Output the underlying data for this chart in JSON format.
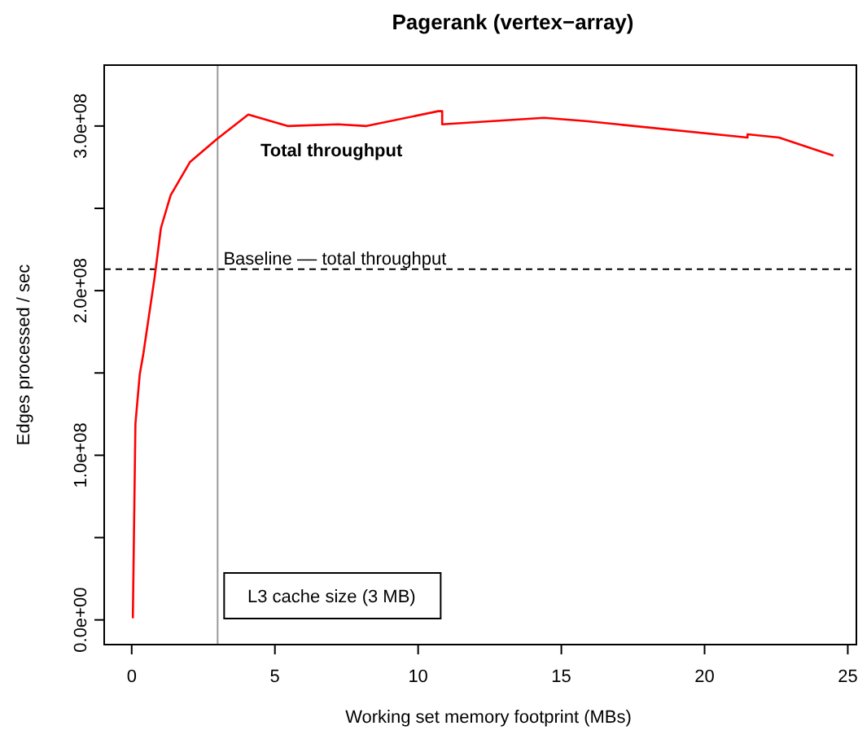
{
  "chart_data": {
    "type": "line",
    "title": "Pagerank (vertex−array)",
    "xlabel": "Working set memory footprint (MBs)",
    "ylabel": "Edges processed / sec",
    "x": [
      0.04,
      0.13,
      0.28,
      0.41,
      0.8,
      1.02,
      1.36,
      2.03,
      2.97,
      4.07,
      5.44,
      7.2,
      8.2,
      10.7,
      10.84,
      10.84,
      14.4,
      15.85,
      21.5,
      21.5,
      22.6,
      24.5
    ],
    "annotations": [
      "Total throughput"
    ],
    "series": [
      {
        "color": "#ff0000",
        "values": [
          1000000,
          119000000,
          149000000,
          162000000,
          208000000,
          238000000,
          258000000,
          278000000,
          292000000,
          307000000,
          300000000,
          301000000,
          300000000,
          309000000,
          309000000,
          301000000,
          305000000,
          303000000,
          293000000,
          295000000,
          293000000,
          282000000
        ]
      }
    ],
    "xlim": [
      -0.96,
      25.3
    ],
    "xticks": [
      0,
      5,
      10,
      15,
      20,
      25
    ],
    "ylim": [
      -15000000,
      337000000
    ],
    "yticks": [
      {
        "value": 0,
        "label": "0.0e+00"
      },
      {
        "value": 50000000,
        "label": null
      },
      {
        "value": 100000000,
        "label": "1.0e+08"
      },
      {
        "value": 150000000,
        "label": null
      },
      {
        "value": 200000000,
        "label": "2.0e+08"
      },
      {
        "value": 250000000,
        "label": null
      },
      {
        "value": 300000000,
        "label": "3.0e+08"
      }
    ],
    "ref_lines": [
      {
        "axis": "y",
        "value": 213000000,
        "label": "Baseline –– total throughput",
        "color": "#000000",
        "line_style": "dashed"
      },
      {
        "axis": "x",
        "value": 3,
        "label": "L3 cache size (3 MB)",
        "color": "#999999",
        "line_style": "solid"
      }
    ],
    "line_style": "solid"
  }
}
